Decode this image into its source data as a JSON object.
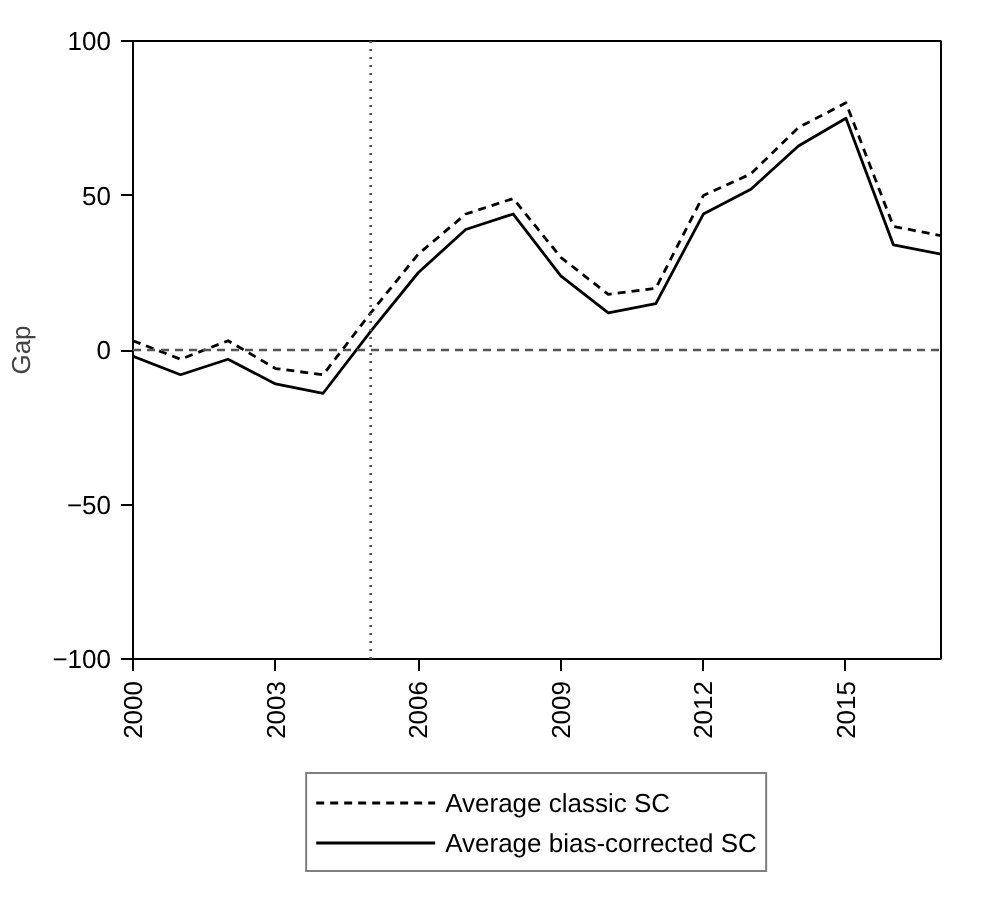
{
  "chart_data": {
    "type": "line",
    "ylabel": "Gap",
    "x": [
      2000,
      2001,
      2002,
      2003,
      2004,
      2005,
      2006,
      2007,
      2008,
      2009,
      2010,
      2011,
      2012,
      2013,
      2014,
      2015,
      2016,
      2017
    ],
    "series": [
      {
        "name": "Average classic SC",
        "color": "#000000",
        "line_style": "dashed",
        "values": [
          3,
          -3,
          3,
          -6,
          -8,
          12,
          31,
          44,
          49,
          30,
          18,
          20,
          50,
          57,
          72,
          80,
          40,
          37
        ]
      },
      {
        "name": "Average bias-corrected SC",
        "color": "#000000",
        "line_style": "solid",
        "values": [
          -2,
          -8,
          -3,
          -11,
          -14,
          6,
          25,
          39,
          44,
          24,
          12,
          15,
          44,
          52,
          66,
          75,
          34,
          31
        ]
      }
    ],
    "xlim": [
      2000,
      2017
    ],
    "ylim": [
      -100,
      100
    ],
    "xticks": [
      2000,
      2003,
      2006,
      2009,
      2012,
      2015
    ],
    "yticks": [
      -100,
      -50,
      0,
      50,
      100
    ],
    "ref_lines": [
      {
        "axis": "y",
        "value": 0,
        "line_style": "dashed",
        "color": "#555555"
      },
      {
        "axis": "x",
        "value": 2005,
        "line_style": "dotted",
        "color": "#555555"
      }
    ],
    "grid": false,
    "legend": "bottom",
    "marker": "none"
  }
}
